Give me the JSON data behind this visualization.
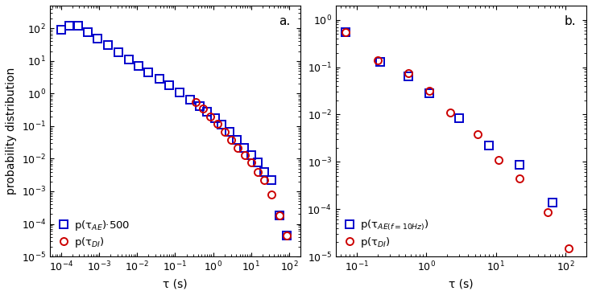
{
  "panel_a": {
    "label": "a.",
    "di_x": [
      0.35,
      0.55,
      0.85,
      1.3,
      2.0,
      3.0,
      4.5,
      7.0,
      10.0,
      15.0,
      22.0,
      35.0,
      55.0,
      85.0
    ],
    "di_y": [
      0.55,
      0.35,
      0.2,
      0.12,
      0.065,
      0.038,
      0.022,
      0.013,
      0.0075,
      0.004,
      0.0022,
      0.0008,
      0.00018,
      4.5e-05
    ],
    "ae_x": [
      0.0001,
      0.00016,
      0.00028,
      0.0005,
      0.0009,
      0.0017,
      0.0032,
      0.006,
      0.011,
      0.02,
      0.038,
      0.07,
      0.13,
      0.25,
      0.45,
      0.7,
      1.1,
      1.7,
      2.7,
      4.2,
      6.5,
      10.0,
      15.0,
      22.0,
      35.0,
      55.0,
      85.0
    ],
    "ae_y": [
      90,
      120,
      120,
      75,
      48,
      30,
      18,
      11,
      7,
      4.5,
      2.8,
      1.8,
      1.1,
      0.65,
      0.4,
      0.28,
      0.18,
      0.11,
      0.065,
      0.038,
      0.022,
      0.013,
      0.0075,
      0.004,
      0.0022,
      0.00018,
      4.5e-05
    ],
    "xlabel": "τ (s)",
    "ylabel": "probability distribution",
    "xlim": [
      5e-05,
      200
    ],
    "ylim": [
      1e-05,
      500
    ],
    "legend_di": "p(τ$_{DI}$)",
    "legend_ae": "p(τ$_{AE}$)·500"
  },
  "panel_b": {
    "label": "b.",
    "di_x": [
      0.07,
      0.2,
      0.55,
      1.1,
      2.2,
      5.5,
      11.0,
      22.0,
      55.0,
      110.0
    ],
    "di_y": [
      0.55,
      0.14,
      0.075,
      0.032,
      0.011,
      0.0038,
      0.0011,
      0.00045,
      8.5e-05,
      1.5e-05
    ],
    "ae_x": [
      0.07,
      0.22,
      0.55,
      1.1,
      3.0,
      8.0,
      22.0,
      65.0
    ],
    "ae_y": [
      0.55,
      0.13,
      0.065,
      0.028,
      0.0085,
      0.0022,
      0.00085,
      0.00014
    ],
    "xlabel": "τ (s)",
    "ylabel": "",
    "xlim": [
      0.05,
      200
    ],
    "ylim": [
      1e-05,
      2
    ],
    "legend_di": "p(τ$_{DI}$)",
    "legend_ae": "p(τ$_{AE(f=10Hz)}$)"
  },
  "circle_color": "#cc0000",
  "square_color": "#0000cc",
  "markersize": 6.5,
  "markeredgewidth": 1.4,
  "fontsize_label": 10,
  "fontsize_tick": 9,
  "fontsize_legend": 9.5
}
